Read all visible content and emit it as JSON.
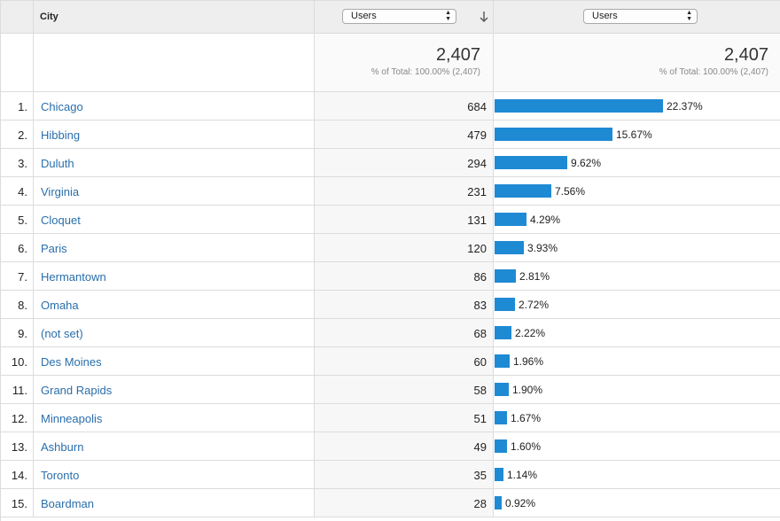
{
  "header": {
    "city_label": "City",
    "metric_select_1": "Users",
    "metric_select_2": "Users",
    "sort_icon": "arrow-down-icon",
    "select_icon": "updown-chevron-icon"
  },
  "totals": {
    "value_1": "2,407",
    "subtext_1": "% of Total: 100.00% (2,407)",
    "value_2": "2,407",
    "subtext_2": "% of Total: 100.00% (2,407)"
  },
  "colors": {
    "bar": "#1f8ad4",
    "link": "#2a6eab"
  },
  "rows": [
    {
      "index": "1.",
      "city": "Chicago",
      "users": "684",
      "pct_text": "22.37%",
      "pct": 22.37
    },
    {
      "index": "2.",
      "city": "Hibbing",
      "users": "479",
      "pct_text": "15.67%",
      "pct": 15.67
    },
    {
      "index": "3.",
      "city": "Duluth",
      "users": "294",
      "pct_text": "9.62%",
      "pct": 9.62
    },
    {
      "index": "4.",
      "city": "Virginia",
      "users": "231",
      "pct_text": "7.56%",
      "pct": 7.56
    },
    {
      "index": "5.",
      "city": "Cloquet",
      "users": "131",
      "pct_text": "4.29%",
      "pct": 4.29
    },
    {
      "index": "6.",
      "city": "Paris",
      "users": "120",
      "pct_text": "3.93%",
      "pct": 3.93
    },
    {
      "index": "7.",
      "city": "Hermantown",
      "users": "86",
      "pct_text": "2.81%",
      "pct": 2.81
    },
    {
      "index": "8.",
      "city": "Omaha",
      "users": "83",
      "pct_text": "2.72%",
      "pct": 2.72
    },
    {
      "index": "9.",
      "city": "(not set)",
      "users": "68",
      "pct_text": "2.22%",
      "pct": 2.22
    },
    {
      "index": "10.",
      "city": "Des Moines",
      "users": "60",
      "pct_text": "1.96%",
      "pct": 1.96
    },
    {
      "index": "11.",
      "city": "Grand Rapids",
      "users": "58",
      "pct_text": "1.90%",
      "pct": 1.9
    },
    {
      "index": "12.",
      "city": "Minneapolis",
      "users": "51",
      "pct_text": "1.67%",
      "pct": 1.67
    },
    {
      "index": "13.",
      "city": "Ashburn",
      "users": "49",
      "pct_text": "1.60%",
      "pct": 1.6
    },
    {
      "index": "14.",
      "city": "Toronto",
      "users": "35",
      "pct_text": "1.14%",
      "pct": 1.14
    },
    {
      "index": "15.",
      "city": "Boardman",
      "users": "28",
      "pct_text": "0.92%",
      "pct": 0.92
    }
  ]
}
